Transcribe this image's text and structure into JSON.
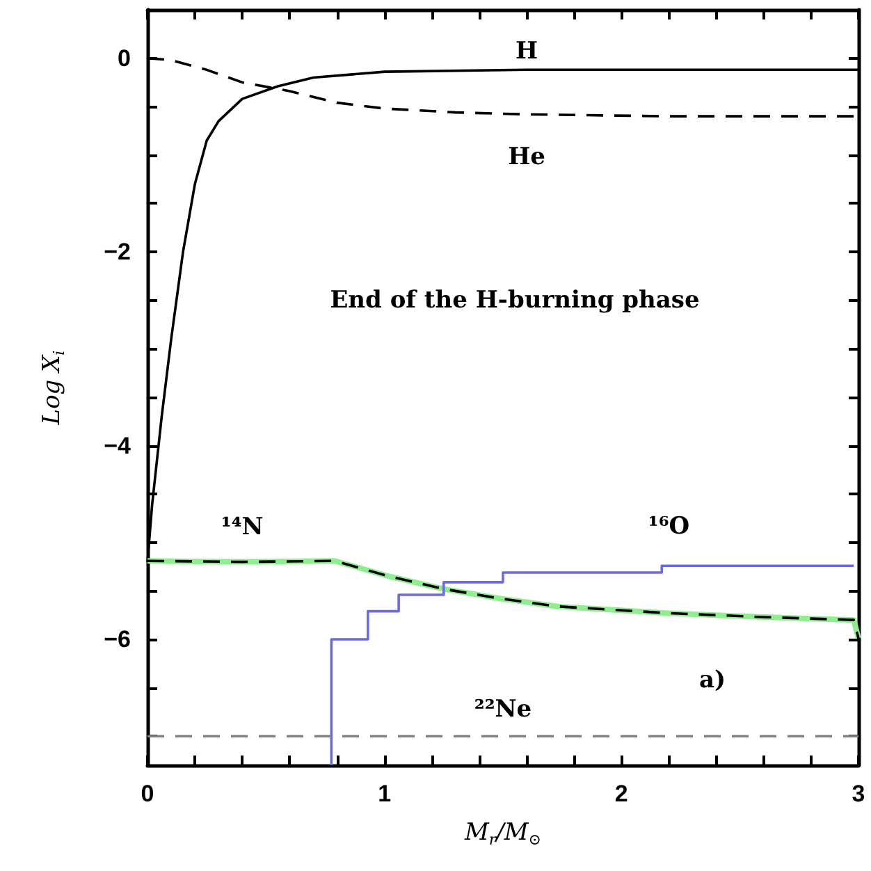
{
  "chart_data": {
    "type": "line",
    "xlabel": "M$_{r}$/M$_{⊙}$",
    "ylabel": "Log X$_{i}$",
    "xlim": [
      0,
      3
    ],
    "ylim": [
      -7.3,
      0.5
    ],
    "xticks": [
      0,
      {
        "value": 0.2,
        "label": null
      },
      {
        "value": 0.4,
        "label": null
      },
      {
        "value": 0.6,
        "label": null
      },
      {
        "value": 0.8,
        "label": null
      },
      1,
      {
        "value": 1.2,
        "label": null
      },
      {
        "value": 1.4,
        "label": null
      },
      {
        "value": 1.6,
        "label": null
      },
      {
        "value": 1.8,
        "label": null
      },
      2,
      {
        "value": 2.2,
        "label": null
      },
      {
        "value": 2.4,
        "label": null
      },
      {
        "value": 2.6,
        "label": null
      },
      {
        "value": 2.8,
        "label": null
      },
      3
    ],
    "yticks": [
      {
        "value": -7,
        "label": null
      },
      {
        "value": -6.5,
        "label": null
      },
      -6,
      {
        "value": -5.5,
        "label": null
      },
      {
        "value": -5,
        "label": null
      },
      {
        "value": -4.5,
        "label": null
      },
      -4,
      {
        "value": -3.5,
        "label": null
      },
      {
        "value": -3,
        "label": null
      },
      {
        "value": -2.5,
        "label": null
      },
      -2,
      {
        "value": -1.5,
        "label": null
      },
      {
        "value": -1,
        "label": null
      },
      {
        "value": -0.5,
        "label": null
      },
      0
    ],
    "grid": false,
    "marker": "none",
    "series": [
      {
        "name": "H",
        "color": "#000000",
        "line_style": "solid",
        "x": [
          0,
          0.02,
          0.06,
          0.1,
          0.15,
          0.2,
          0.25,
          0.3,
          0.4,
          0.55,
          0.7,
          1.0,
          1.6,
          3.0
        ],
        "values": [
          -5.2,
          -4.6,
          -3.7,
          -2.9,
          -2.0,
          -1.3,
          -0.85,
          -0.65,
          -0.42,
          -0.29,
          -0.2,
          -0.14,
          -0.12,
          -0.12
        ]
      },
      {
        "name": "He",
        "color": "#000000",
        "line_style": "dashed",
        "x": [
          0,
          0.1,
          0.25,
          0.4,
          0.6,
          0.8,
          1.0,
          1.3,
          1.6,
          2.2,
          3.0
        ],
        "values": [
          0,
          -0.02,
          -0.12,
          -0.25,
          -0.34,
          -0.46,
          -0.52,
          -0.56,
          -0.58,
          -0.6,
          -0.6
        ]
      },
      {
        "color": "#90ee90",
        "line_style": "solid",
        "x": [
          0,
          0.4,
          0.79,
          1.02,
          1.25,
          1.49,
          1.73,
          2.2,
          2.6,
          2.98,
          3.0
        ],
        "values": [
          -5.19,
          -5.2,
          -5.19,
          -5.35,
          -5.48,
          -5.58,
          -5.66,
          -5.73,
          -5.77,
          -5.8,
          -5.99
        ]
      },
      {
        "name": "¹⁴N",
        "color": "#000000",
        "line_style": "dashed",
        "x": [
          0,
          0.4,
          0.79,
          1.02,
          1.25,
          1.49,
          1.73,
          2.2,
          2.6,
          2.98,
          3.0
        ],
        "values": [
          -5.19,
          -5.2,
          -5.19,
          -5.35,
          -5.48,
          -5.58,
          -5.66,
          -5.73,
          -5.77,
          -5.8,
          -5.99
        ]
      },
      {
        "name": "¹⁶O",
        "type": "step",
        "color": "#6b6bdf",
        "line_style": "solid",
        "x": [
          0.776,
          0.776,
          0.93,
          1.06,
          1.25,
          1.5,
          2.17,
          2.98
        ],
        "values": [
          -7.3,
          -6.0,
          -5.71,
          -5.54,
          -5.41,
          -5.31,
          -5.24,
          -5.24
        ]
      },
      {
        "name": "²²Ne",
        "color": "#808080",
        "line_style": "dashed",
        "x": [
          0,
          3.0
        ],
        "values": [
          -7.0,
          -7.0
        ]
      }
    ],
    "annotations": [
      "End of the H-burning phase",
      "a)"
    ]
  }
}
